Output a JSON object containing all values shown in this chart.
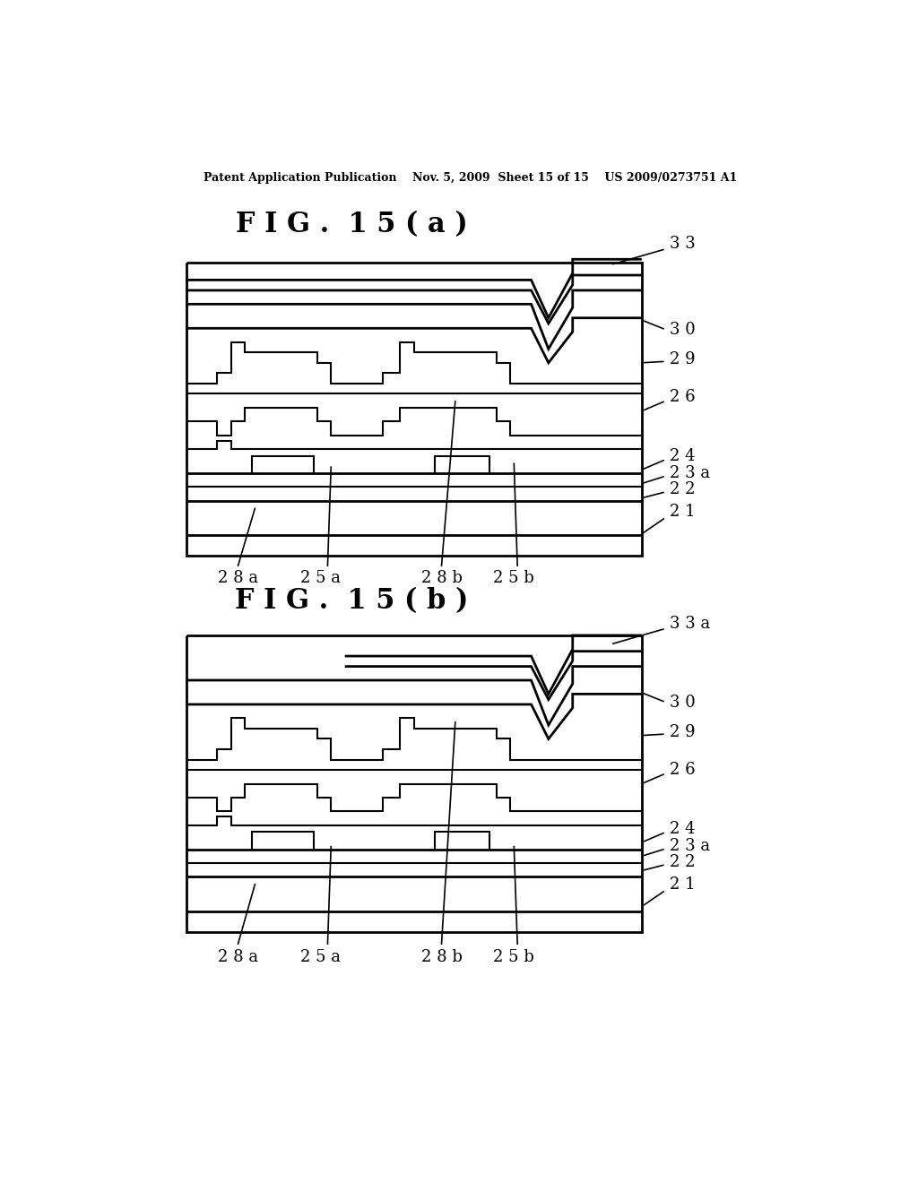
{
  "bg_color": "#ffffff",
  "line_color": "#000000",
  "header_text": "Patent Application Publication    Nov. 5, 2009  Sheet 15 of 15    US 2009/0273751 A1",
  "title_a": "F I G .  1 5 ( a )",
  "title_b": "F I G .  1 5 ( b )"
}
